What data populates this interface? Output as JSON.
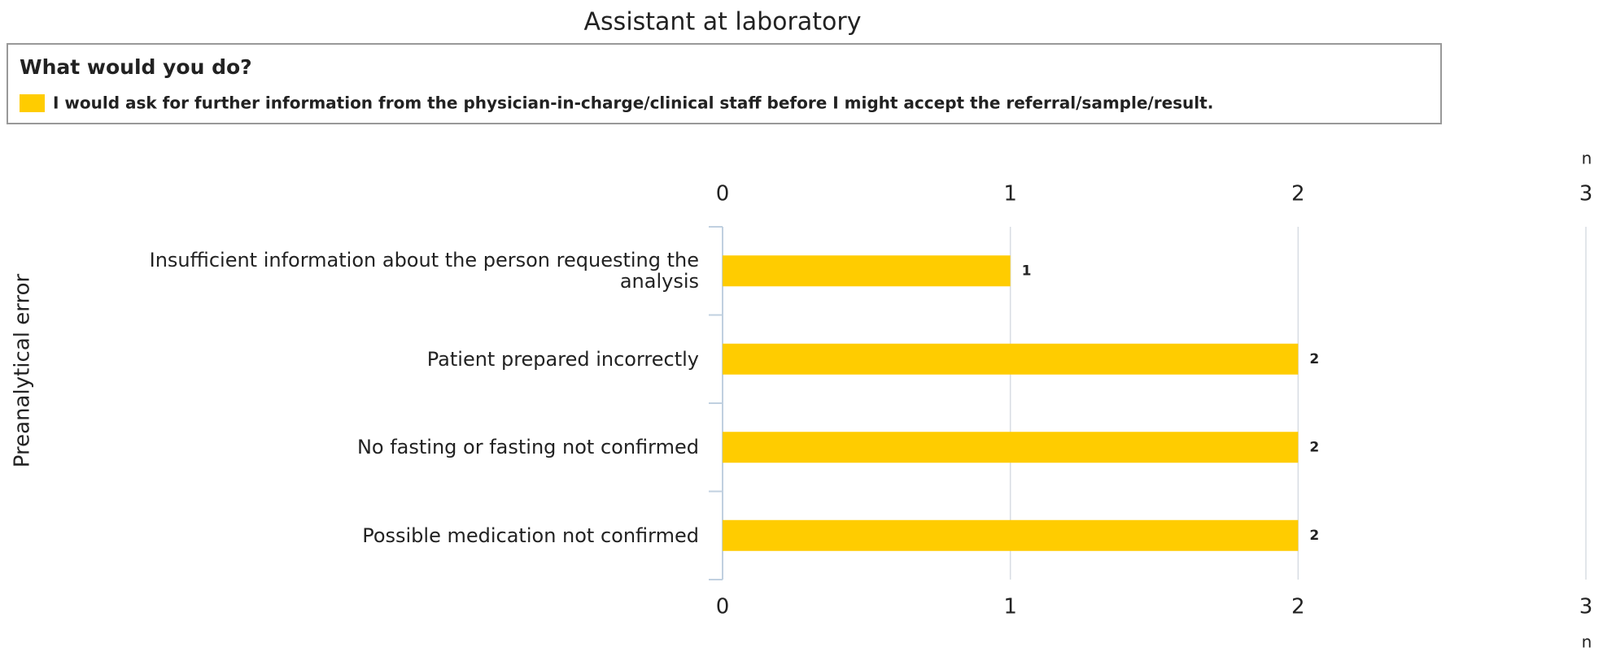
{
  "chart_data": {
    "type": "bar",
    "orientation": "horizontal",
    "title": "Assistant at laboratory",
    "legend_title": "What would you do?",
    "y_axis_label": "Preanalytical error",
    "x_axis_label": "n",
    "categories": [
      "Insufficient information about the person requesting the analysis",
      "Patient prepared incorrectly",
      "No fasting or fasting not confirmed",
      "Possible medication not confirmed"
    ],
    "series": [
      {
        "name": "I would ask for further information from the physician-in-charge/clinical staff before I might accept the referral/sample/result.",
        "color": "#ffcc00",
        "values": [
          1,
          2,
          2,
          2
        ]
      }
    ],
    "xlim": [
      0,
      3
    ],
    "xticks": [
      0,
      1,
      2,
      3
    ],
    "grid": true
  }
}
